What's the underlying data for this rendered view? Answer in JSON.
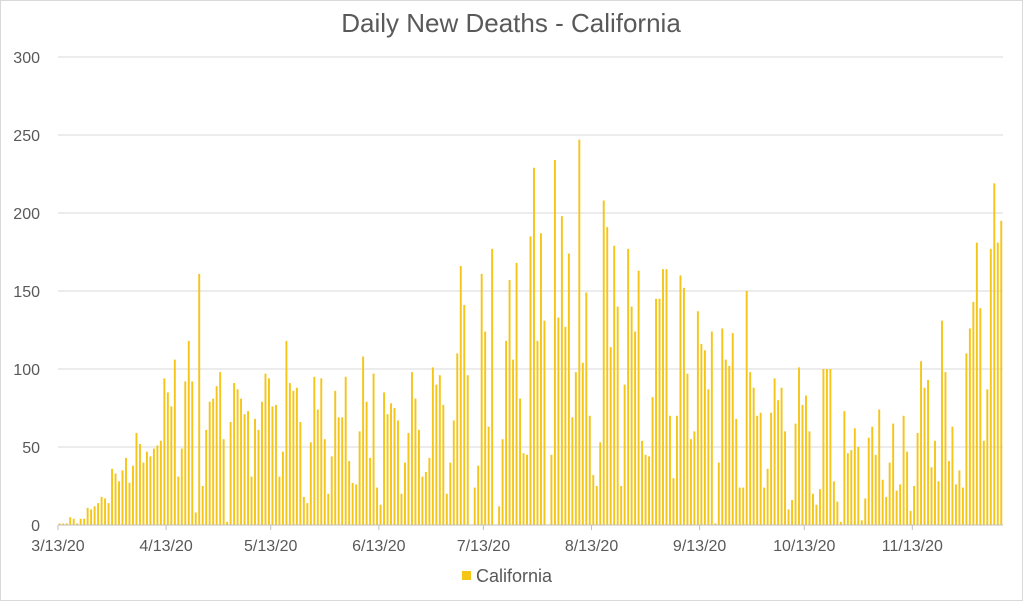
{
  "chart_data": {
    "type": "bar",
    "title": "Daily New Deaths - California",
    "legend": {
      "position": "bottom",
      "entries": [
        "California"
      ]
    },
    "series": [
      {
        "name": "California",
        "color": "#f5c518",
        "values": [
          1,
          1,
          1,
          5,
          4,
          1,
          4,
          4,
          11,
          10,
          12,
          14,
          18,
          17,
          14,
          36,
          33,
          28,
          35,
          43,
          27,
          38,
          59,
          52,
          40,
          47,
          44,
          49,
          51,
          54,
          94,
          85,
          76,
          106,
          31,
          49,
          92,
          118,
          92,
          8,
          161,
          25,
          61,
          79,
          81,
          89,
          98,
          55,
          2,
          66,
          91,
          87,
          81,
          71,
          73,
          31,
          68,
          61,
          79,
          97,
          94,
          76,
          77,
          31,
          47,
          118,
          91,
          86,
          88,
          66,
          18,
          14,
          53,
          95,
          74,
          94,
          55,
          20,
          44,
          86,
          69,
          69,
          95,
          41,
          27,
          26,
          60,
          108,
          79,
          43,
          97,
          24,
          13,
          85,
          71,
          78,
          75,
          67,
          20,
          40,
          59,
          98,
          81,
          61,
          31,
          34,
          43,
          101,
          90,
          96,
          77,
          20,
          40,
          67,
          110,
          166,
          141,
          96,
          0,
          24,
          38,
          161,
          124,
          63,
          177,
          0,
          12,
          55,
          118,
          157,
          106,
          168,
          81,
          46,
          45,
          185,
          229,
          118,
          187,
          131,
          0,
          45,
          234,
          133,
          198,
          127,
          174,
          69,
          98,
          247,
          104,
          149,
          70,
          32,
          25,
          53,
          208,
          191,
          114,
          179,
          140,
          25,
          90,
          177,
          140,
          124,
          163,
          54,
          45,
          44,
          82,
          145,
          145,
          164,
          164,
          70,
          30,
          70,
          160,
          152,
          97,
          55,
          60,
          137,
          116,
          112,
          87,
          124,
          1,
          40,
          126,
          106,
          102,
          123,
          68,
          24,
          24,
          150,
          98,
          88,
          70,
          72,
          24,
          36,
          72,
          94,
          80,
          88,
          60,
          10,
          16,
          65,
          101,
          77,
          83,
          60,
          20,
          13,
          23,
          100,
          100,
          100,
          28,
          15,
          2,
          73,
          46,
          48,
          62,
          50,
          3,
          17,
          56,
          63,
          45,
          74,
          29,
          18,
          40,
          65,
          22,
          26,
          70,
          47,
          9,
          25,
          59,
          105,
          88,
          93,
          37,
          54,
          28,
          131,
          98,
          41,
          63,
          26,
          35,
          24,
          110,
          126,
          143,
          181,
          139,
          54,
          87,
          177,
          219,
          181,
          195
        ]
      }
    ],
    "x_start_date": "2020-03-13",
    "xtick_labels": [
      "3/13/20",
      "4/13/20",
      "5/13/20",
      "6/13/20",
      "7/13/20",
      "8/13/20",
      "9/13/20",
      "10/13/20",
      "11/13/20"
    ],
    "xtick_day_offsets": [
      0,
      31,
      61,
      92,
      122,
      153,
      184,
      214,
      245
    ],
    "ylim": [
      0,
      300
    ],
    "yticks": [
      0,
      50,
      100,
      150,
      200,
      250,
      300
    ],
    "grid": true,
    "xlabel": "",
    "ylabel": ""
  }
}
